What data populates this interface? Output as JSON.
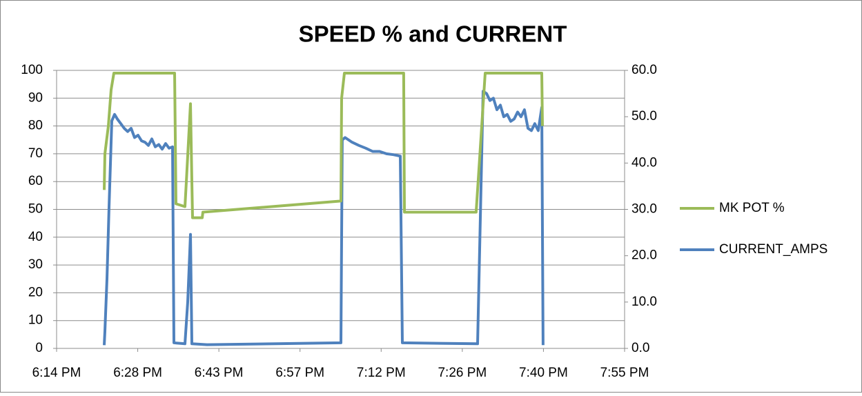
{
  "chart_data": {
    "type": "line",
    "title": "SPEED % and CURRENT",
    "xlim": [
      1094.4,
      1195.2
    ],
    "xticks": [
      {
        "value": 1094.4,
        "label": "6:14 PM"
      },
      {
        "value": 1108.8,
        "label": "6:28 PM"
      },
      {
        "value": 1123.2,
        "label": "6:43 PM"
      },
      {
        "value": 1137.6,
        "label": "6:57 PM"
      },
      {
        "value": 1152.0,
        "label": "7:12 PM"
      },
      {
        "value": 1166.4,
        "label": "7:26 PM"
      },
      {
        "value": 1180.8,
        "label": "7:40 PM"
      },
      {
        "value": 1195.2,
        "label": "7:55 PM"
      }
    ],
    "ylim": [
      0,
      100
    ],
    "yticks": [
      0,
      10,
      20,
      30,
      40,
      50,
      60,
      70,
      80,
      90,
      100
    ],
    "y2lim": [
      0,
      60
    ],
    "y2ticks": [
      {
        "value": 0,
        "label": "0.0"
      },
      {
        "value": 10,
        "label": "10.0"
      },
      {
        "value": 20,
        "label": "20.0"
      },
      {
        "value": 30,
        "label": "30.0"
      },
      {
        "value": 40,
        "label": "40.0"
      },
      {
        "value": 50,
        "label": "50.0"
      },
      {
        "value": 60,
        "label": "60.0"
      }
    ],
    "grid": true,
    "legend": "right",
    "series": [
      {
        "name": "MK POT %",
        "color": "#9bbb59",
        "x": [
          1102.85,
          1102.97,
          1103.59,
          1104.08,
          1104.57,
          1115.34,
          1115.59,
          1117.18,
          1117.42,
          1118.16,
          1118.4,
          1118.53,
          1120.24,
          1120.36,
          1144.86,
          1144.98,
          1145.47,
          1156.0,
          1156.13,
          1168.86,
          1170.46,
          1180.5,
          1180.62
        ],
        "values": [
          57,
          70,
          80,
          93,
          99,
          99,
          52,
          51,
          60,
          88,
          60,
          47,
          47,
          49,
          53,
          90,
          99,
          99,
          49,
          49,
          99,
          99,
          80
        ]
      },
      {
        "name": "CURRENT_AMPS",
        "color": "#4f81bd",
        "axis": "y2",
        "x": [
          1102.85,
          1102.97,
          1103.34,
          1103.71,
          1104.2,
          1104.69,
          1105.18,
          1105.79,
          1106.4,
          1107.01,
          1107.63,
          1108.24,
          1108.85,
          1109.46,
          1110.08,
          1110.69,
          1111.3,
          1111.91,
          1112.53,
          1113.14,
          1113.75,
          1114.36,
          1114.98,
          1115.22,
          1117.18,
          1117.67,
          1118.16,
          1118.4,
          1121.1,
          1144.86,
          1145.1,
          1145.59,
          1146.82,
          1148.04,
          1149.27,
          1150.49,
          1151.72,
          1152.94,
          1154.17,
          1155.39,
          1155.76,
          1169.11,
          1170.09,
          1170.7,
          1171.31,
          1171.92,
          1172.54,
          1173.15,
          1173.76,
          1174.37,
          1174.99,
          1175.6,
          1176.21,
          1176.82,
          1177.43,
          1178.05,
          1178.66,
          1179.27,
          1179.88,
          1180.5,
          1180.74
        ],
        "values": [
          0.7,
          3.7,
          15,
          30.5,
          49.1,
          50.5,
          49.5,
          48.5,
          47.5,
          46.8,
          47.5,
          45.5,
          46,
          44.8,
          44.5,
          43.8,
          45.2,
          43.5,
          44.0,
          43.0,
          44.2,
          43.2,
          43.5,
          1.2,
          1.0,
          10,
          24.6,
          1.0,
          0.8,
          1.2,
          45.0,
          45.5,
          44.5,
          43.8,
          43.2,
          42.5,
          42.5,
          42.0,
          41.8,
          41.5,
          1.2,
          1.0,
          55.5,
          55.0,
          53.5,
          54.0,
          51.5,
          52.5,
          50.0,
          50.5,
          49.0,
          49.5,
          51.0,
          50.0,
          51.5,
          47.5,
          47.0,
          48.5,
          47.0,
          52.0,
          0.7
        ]
      }
    ]
  }
}
